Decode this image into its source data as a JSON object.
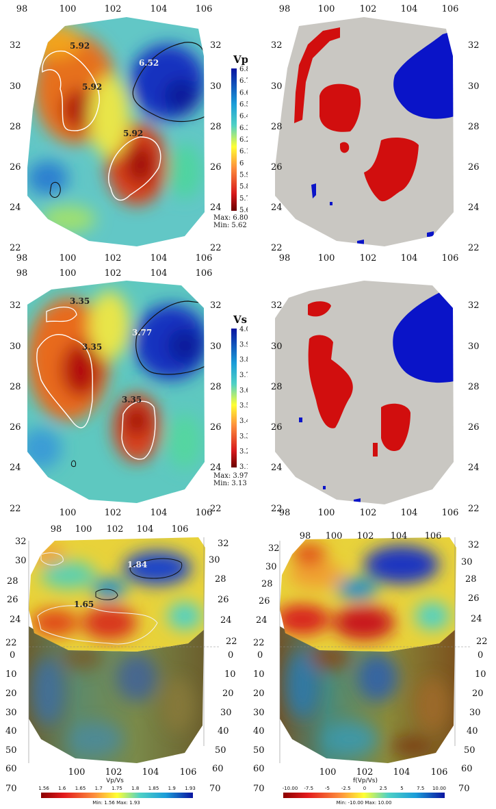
{
  "chart_data": [
    {
      "type": "heatmap",
      "panel": "vp-map",
      "colorbar_label": "Vp",
      "colorbar_ticks": [
        "6.80",
        "6.7",
        "6.6",
        "6.5",
        "6.4",
        "6.3",
        "6.2",
        "6.1",
        "6",
        "5.9",
        "5.8",
        "5.7",
        "5.60"
      ],
      "clim": [
        5.6,
        6.8
      ],
      "max_text": "Max: 6.80",
      "min_text": "Min: 5.62",
      "x_ticks": [
        "98",
        "100",
        "102",
        "104",
        "106"
      ],
      "y_ticks": [
        "32",
        "30",
        "28",
        "26",
        "24",
        "22"
      ],
      "contour_labels": [
        "5.92",
        "5.92",
        "5.92",
        "6.52"
      ]
    },
    {
      "type": "heatmap",
      "panel": "vp-anomaly",
      "x_ticks": [
        "98",
        "100",
        "102",
        "104",
        "106"
      ],
      "y_ticks": [
        "32",
        "30",
        "28",
        "26",
        "24",
        "22"
      ]
    },
    {
      "type": "heatmap",
      "panel": "vs-map",
      "colorbar_label": "Vs",
      "colorbar_ticks": [
        "4.00",
        "3.9",
        "3.8",
        "3.7",
        "3.6",
        "3.5",
        "3.4",
        "3.3",
        "3.2",
        "3.10"
      ],
      "clim": [
        3.1,
        4.0
      ],
      "max_text": "Max: 3.97",
      "min_text": "Min: 3.13",
      "x_ticks": [
        "98",
        "100",
        "102",
        "104",
        "106"
      ],
      "y_ticks": [
        "32",
        "30",
        "28",
        "26",
        "24",
        "22"
      ],
      "contour_labels": [
        "3.35",
        "3.35",
        "3.35",
        "3.77"
      ]
    },
    {
      "type": "heatmap",
      "panel": "vs-anomaly",
      "x_ticks": [
        "98",
        "100",
        "102",
        "104",
        "106"
      ],
      "y_ticks": [
        "32",
        "30",
        "28",
        "26",
        "24",
        "22"
      ]
    },
    {
      "type": "heatmap",
      "panel": "vpvs-3d",
      "colorbar_label": "Vp/Vs",
      "colorbar_ticks": [
        "1.56",
        "1.6",
        "1.65",
        "1.7",
        "1.75",
        "1.8",
        "1.85",
        "1.9",
        "1.93"
      ],
      "clim": [
        1.56,
        1.93
      ],
      "minmax_text": "Min: 1.56   Max: 1.93",
      "x_ticks": [
        "98",
        "100",
        "102",
        "104",
        "106"
      ],
      "x_ticks_bottom": [
        "100",
        "102",
        "104",
        "106"
      ],
      "y_ticks_left": [
        "32",
        "30",
        "28",
        "26",
        "24",
        "22"
      ],
      "y_ticks_right": [
        "32",
        "30",
        "28",
        "26",
        "24",
        "22"
      ],
      "z_ticks": [
        "0",
        "10",
        "20",
        "30",
        "40",
        "50",
        "60",
        "70"
      ],
      "contour_labels": [
        "1.84",
        "1.65"
      ]
    },
    {
      "type": "heatmap",
      "panel": "fvpvs-3d",
      "colorbar_label": "f(Vp/Vs)",
      "colorbar_ticks": [
        "-10.00",
        "-7.5",
        "-5",
        "-2.5",
        "0",
        "2.5",
        "5",
        "7.5",
        "10.00"
      ],
      "clim": [
        -10.0,
        10.0
      ],
      "minmax_text": "Min: -10.00   Max: 10.00",
      "x_ticks": [
        "98",
        "100",
        "102",
        "104",
        "106"
      ],
      "x_ticks_bottom": [
        "100",
        "102",
        "104",
        "106"
      ],
      "y_ticks_left": [
        "32",
        "30",
        "28",
        "26",
        "24",
        "22"
      ],
      "y_ticks_right": [
        "32",
        "30",
        "28",
        "26",
        "24",
        "22"
      ],
      "z_ticks": [
        "0",
        "10",
        "20",
        "30",
        "40",
        "50",
        "60",
        "70"
      ]
    }
  ],
  "colors": {
    "anomaly_low": "#d10e0e",
    "anomaly_high": "#0a14c8",
    "anomaly_neutral": "#c9c7c2"
  }
}
